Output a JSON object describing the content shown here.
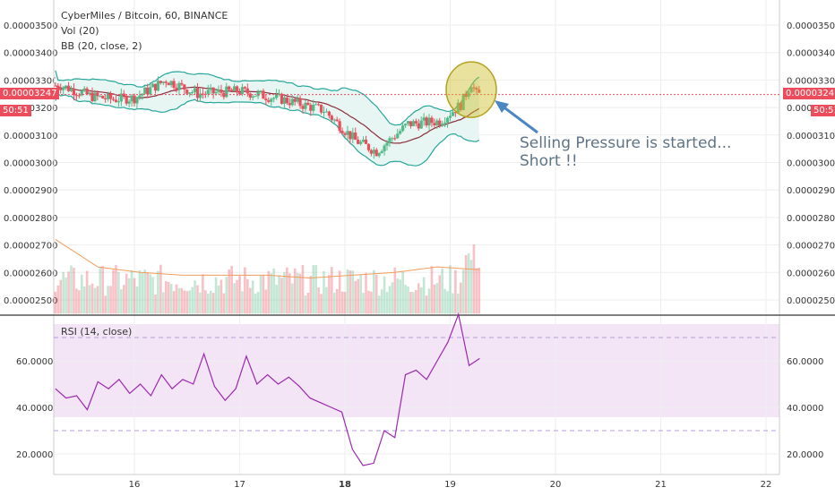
{
  "chart_data": {
    "type": "candlestick",
    "title": "CyberMiles / Bitcoin, 60, BINANCE",
    "indicators": [
      "Vol (20)",
      "BB (20, close, 2)"
    ],
    "price_axis": {
      "ticks": [
        "0.00003500",
        "0.00003400",
        "0.00003300",
        "0.00003200",
        "0.00003100",
        "0.00003000",
        "0.00002900",
        "0.00002800",
        "0.00002700",
        "0.00002600",
        "0.00002500"
      ],
      "range": [
        2.45e-05,
        3.55e-05
      ]
    },
    "last_price": {
      "label": "0.00003247",
      "value": 3.247e-05,
      "countdown": "50:51",
      "right_label": "0.0000"
    },
    "x_axis": {
      "ticks": [
        "16",
        "17",
        "18",
        "19",
        "20",
        "21",
        "22"
      ],
      "bold": "18"
    },
    "price_series_approx": [
      {
        "t": 15.3,
        "close": 3.28e-05
      },
      {
        "t": 15.6,
        "close": 3.24e-05
      },
      {
        "t": 15.8,
        "close": 3.23e-05
      },
      {
        "t": 16.0,
        "close": 3.235e-05
      },
      {
        "t": 16.3,
        "close": 3.3e-05
      },
      {
        "t": 16.6,
        "close": 3.25e-05
      },
      {
        "t": 17.0,
        "close": 3.26e-05
      },
      {
        "t": 17.4,
        "close": 3.23e-05
      },
      {
        "t": 17.8,
        "close": 3.19e-05
      },
      {
        "t": 18.1,
        "close": 3.08e-05
      },
      {
        "t": 18.3,
        "close": 3.04e-05
      },
      {
        "t": 18.6,
        "close": 3.14e-05
      },
      {
        "t": 18.9,
        "close": 3.15e-05
      },
      {
        "t": 19.1,
        "close": 3.21e-05
      },
      {
        "t": 19.2,
        "close": 3.29e-05
      },
      {
        "t": 19.25,
        "close": 3.247e-05
      }
    ],
    "volume_ma_approx": [
      2.72e-05,
      2.62e-05,
      2.6e-05,
      2.59e-05,
      2.59e-05,
      2.59e-05,
      2.58e-05,
      2.59e-05,
      2.6e-05,
      2.62e-05,
      2.61e-05
    ],
    "rsi": {
      "label": "RSI (14, close)",
      "ticks": [
        "60.0000",
        "40.0000",
        "20.0000"
      ],
      "overbought": 70,
      "oversold": 30,
      "series_approx": [
        48,
        44,
        45,
        39,
        51,
        48,
        52,
        46,
        50,
        45,
        54,
        48,
        52,
        50,
        63,
        49,
        43,
        48,
        62,
        50,
        54,
        50,
        53,
        49,
        44,
        42,
        40,
        38,
        22,
        15,
        16,
        30,
        27,
        54,
        56,
        52,
        60,
        68,
        80,
        58,
        61
      ]
    },
    "annotation": {
      "line1": "Selling Pressure is started...",
      "line2": "Short !!"
    },
    "colors": {
      "up": "#53b987",
      "down": "#eb4d5c",
      "bb": "#26a69a",
      "bb_fill": "#e8f6f3",
      "basis": "#8e2c3c",
      "vol_ma": "#f39c5a",
      "rsi": "#9c27b0",
      "rsi_band": "#f3e5f5",
      "highlight": "#c8b400"
    }
  }
}
